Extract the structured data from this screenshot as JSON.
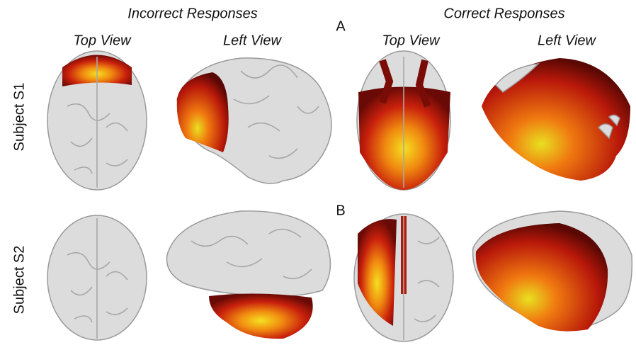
{
  "groups": [
    {
      "title": "Incorrect Responses",
      "views": [
        "Top View",
        "Left View"
      ]
    },
    {
      "title": "Correct Responses",
      "views": [
        "Top View",
        "Left View"
      ]
    }
  ],
  "panels": [
    "A",
    "B"
  ],
  "rows": [
    "Subject S1",
    "Subject S2"
  ]
}
